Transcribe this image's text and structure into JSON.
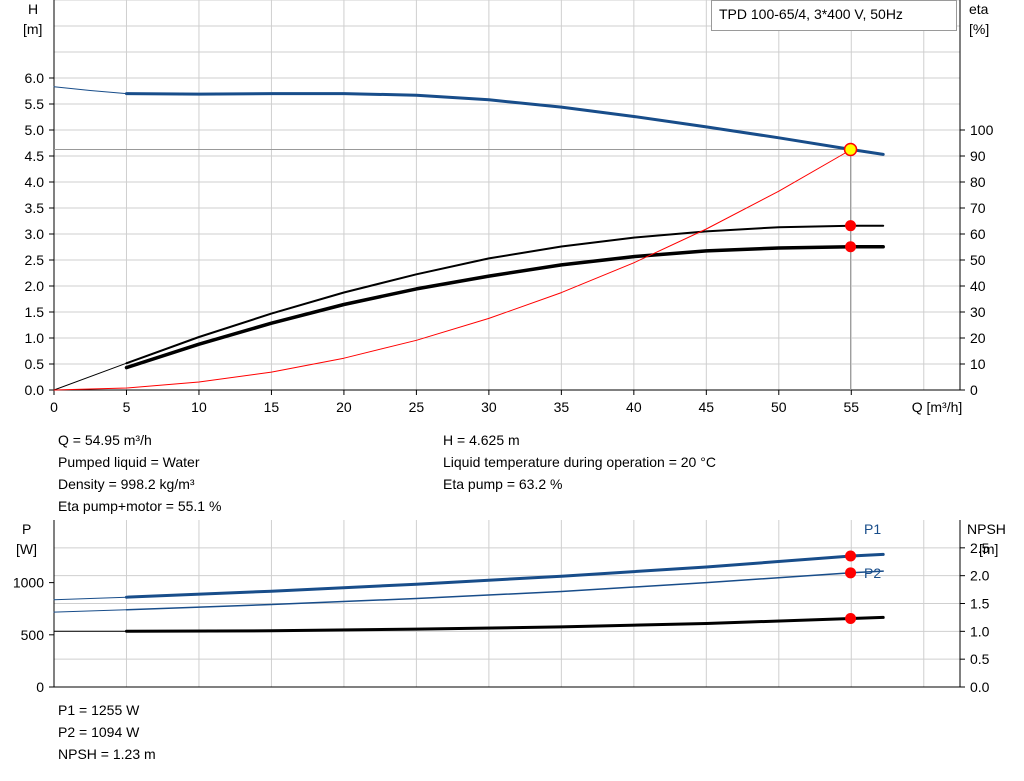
{
  "legend_title": "TPD 100-65/4, 3*400 V, 50Hz",
  "colors": {
    "blue": "#184d8a",
    "black": "#000000",
    "red": "#ff0000",
    "grid": "#cfcfcf",
    "marker_yellow": "#ffff00"
  },
  "info_top": {
    "left": [
      "Q = 54.95 m³/h",
      "Pumped liquid = Water",
      "Density = 998.2 kg/m³",
      "Eta pump+motor = 55.1 %"
    ],
    "right": [
      "H = 4.625 m",
      "Liquid temperature during operation = 20 °C",
      "Eta pump = 63.2 %"
    ]
  },
  "info_bottom": [
    "P1 = 1255 W",
    "P2 = 1094 W",
    "NPSH = 1.23 m"
  ],
  "chart_data": [
    {
      "type": "line",
      "name": "head-efficiency",
      "title": "TPD 100-65/4, 3*400 V, 50Hz",
      "xlabel": "Q [m³/h]",
      "ylabel_left": [
        "H",
        "[m]"
      ],
      "ylabel_right": [
        "eta",
        "[%]"
      ],
      "xlim": [
        0,
        62.5
      ],
      "ylim_left": [
        0,
        7.5
      ],
      "ylim_right": [
        0,
        150
      ],
      "xticks": [
        "0",
        "5",
        "10",
        "15",
        "20",
        "25",
        "30",
        "35",
        "40",
        "45",
        "50",
        "55"
      ],
      "yticks_left": [
        "0.0",
        "0.5",
        "1.0",
        "1.5",
        "2.0",
        "2.5",
        "3.0",
        "3.5",
        "4.0",
        "4.5",
        "5.0",
        "5.5",
        "6.0"
      ],
      "yticks_right": [
        "0",
        "10",
        "20",
        "30",
        "40",
        "50",
        "60",
        "70",
        "80",
        "90",
        "100"
      ],
      "grid": true,
      "series": [
        {
          "key": "H",
          "axis": "left",
          "color": "#184d8a",
          "width": 3,
          "x": [
            5,
            10,
            15,
            20,
            25,
            30,
            35,
            40,
            45,
            50,
            55,
            57.2
          ],
          "y": [
            5.7,
            5.69,
            5.7,
            5.7,
            5.67,
            5.58,
            5.44,
            5.26,
            5.06,
            4.85,
            4.625,
            4.53
          ]
        },
        {
          "key": "H-ext",
          "axis": "left",
          "color": "#184d8a",
          "width": 1,
          "x": [
            0,
            2.5,
            5
          ],
          "y": [
            5.83,
            5.76,
            5.7
          ]
        },
        {
          "key": "eta-pump",
          "axis": "right",
          "color": "#000000",
          "width": 2,
          "x": [
            5,
            10,
            15,
            20,
            25,
            30,
            35,
            40,
            45,
            50,
            55,
            57.2
          ],
          "y": [
            10.3,
            20.4,
            29.4,
            37.5,
            44.5,
            50.6,
            55.2,
            58.6,
            61,
            62.6,
            63.2,
            63.2
          ]
        },
        {
          "key": "eta-pump-motor",
          "axis": "right",
          "color": "#000000",
          "width": 3.5,
          "x": [
            5,
            10,
            15,
            20,
            25,
            30,
            35,
            40,
            45,
            50,
            55,
            57.2
          ],
          "y": [
            8.6,
            17.6,
            25.7,
            32.9,
            38.9,
            43.8,
            48.1,
            51.3,
            53.5,
            54.6,
            55.1,
            55.1
          ]
        },
        {
          "key": "eta-ext",
          "axis": "right",
          "color": "#000000",
          "width": 1,
          "x": [
            0,
            5
          ],
          "y": [
            0,
            10.3
          ]
        },
        {
          "key": "system-curve",
          "axis": "left",
          "color": "#ff0000",
          "width": 1,
          "x": [
            0,
            5,
            10,
            15,
            20,
            25,
            30,
            35,
            40,
            45,
            50,
            55
          ],
          "y": [
            0,
            0.038,
            0.153,
            0.344,
            0.612,
            0.956,
            1.376,
            1.873,
            2.447,
            3.097,
            3.823,
            4.625
          ]
        }
      ],
      "operating_point": {
        "x": 54.95,
        "H": 4.625,
        "eta_pump": 63.2,
        "eta_total": 55.1
      }
    },
    {
      "type": "line",
      "name": "power-npsh",
      "xlim": [
        0,
        62.5
      ],
      "ylabel_left": [
        "P",
        "[W]"
      ],
      "ylabel_right": [
        "NPSH",
        "[m]"
      ],
      "ylim_left": [
        0,
        1600
      ],
      "ylim_right": [
        0,
        3.0
      ],
      "yticks_left": [
        "0",
        "500",
        "1000"
      ],
      "yticks_right": [
        "0.0",
        "0.5",
        "1.0",
        "1.5",
        "2.0",
        "2.5"
      ],
      "grid": true,
      "series": [
        {
          "key": "P1",
          "label": "P1",
          "axis": "left",
          "color": "#184d8a",
          "width": 3,
          "x": [
            5,
            15,
            25,
            35,
            45,
            55,
            57.2
          ],
          "y": [
            860,
            918,
            985,
            1062,
            1150,
            1255,
            1270
          ]
        },
        {
          "key": "P1-ext",
          "axis": "left",
          "color": "#184d8a",
          "width": 1,
          "x": [
            0,
            5
          ],
          "y": [
            836,
            860
          ]
        },
        {
          "key": "P2",
          "label": "P2",
          "axis": "left",
          "color": "#184d8a",
          "width": 1.5,
          "x": [
            5,
            15,
            25,
            35,
            45,
            55,
            57.2
          ],
          "y": [
            740,
            790,
            848,
            915,
            1000,
            1094,
            1110
          ]
        },
        {
          "key": "P2-ext",
          "axis": "left",
          "color": "#184d8a",
          "width": 1,
          "x": [
            0,
            5
          ],
          "y": [
            718,
            740
          ]
        },
        {
          "key": "NPSH",
          "axis": "right",
          "color": "#000000",
          "width": 3,
          "x": [
            5,
            15,
            25,
            35,
            45,
            55,
            57.2
          ],
          "y": [
            1.0,
            1.01,
            1.04,
            1.08,
            1.14,
            1.23,
            1.25
          ]
        },
        {
          "key": "NPSH-ext",
          "axis": "right",
          "color": "#000000",
          "width": 1,
          "x": [
            0,
            5
          ],
          "y": [
            1.0,
            1.0
          ]
        }
      ],
      "operating_point": {
        "x": 54.95,
        "P1": 1255,
        "P2": 1094,
        "NPSH": 1.23
      }
    }
  ]
}
